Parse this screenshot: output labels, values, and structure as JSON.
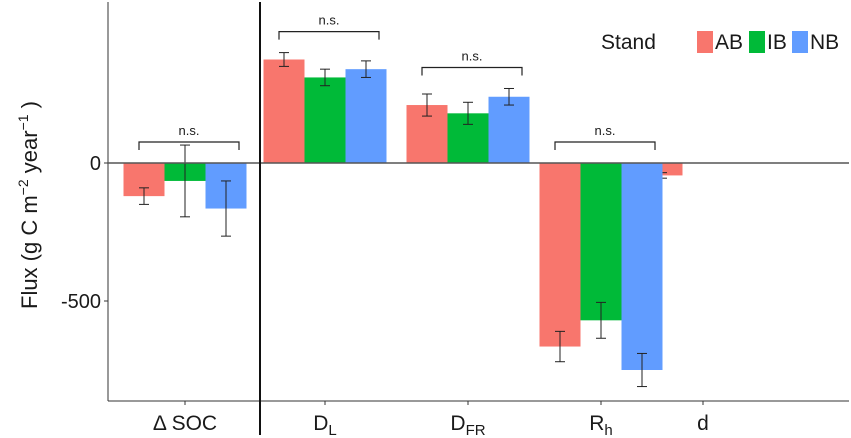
{
  "chart_data": {
    "type": "bar",
    "ylabel": "Flux (g C m−2 year−1 )",
    "ylabel_parts": {
      "prefix": "Flux (g C m",
      "exp1": "−2",
      "mid": " year",
      "exp2": "−1",
      "suffix": " )"
    },
    "ylim": [
      -870,
      470
    ],
    "yticks": [
      0,
      -500
    ],
    "ytick_labels": [
      "0",
      "-500"
    ],
    "grid": false,
    "legend": {
      "title": "Stand",
      "position": "top-right",
      "entries": [
        "AB",
        "IB",
        "NB"
      ]
    },
    "categories": [
      {
        "label": "Δ SOC",
        "base": "Δ SOC",
        "sub": ""
      },
      {
        "label": "DL",
        "base": "D",
        "sub": "L"
      },
      {
        "label": "DFR",
        "base": "D",
        "sub": "FR"
      },
      {
        "label": "Rh",
        "base": "R",
        "sub": "h"
      },
      {
        "label": "d",
        "base": "d",
        "sub": ""
      }
    ],
    "series": [
      {
        "name": "AB",
        "color": "#F8766D",
        "values": [
          -120,
          375,
          210,
          -665,
          -45
        ],
        "errors": [
          30,
          25,
          40,
          55,
          10
        ]
      },
      {
        "name": "IB",
        "color": "#00BA38",
        "values": [
          -65,
          310,
          180,
          -570,
          null
        ],
        "errors": [
          130,
          30,
          40,
          65,
          null
        ]
      },
      {
        "name": "NB",
        "color": "#619CFF",
        "values": [
          -165,
          340,
          240,
          -750,
          null
        ],
        "errors": [
          100,
          30,
          30,
          60,
          null
        ]
      }
    ],
    "annotations": [
      {
        "text": "n.s.",
        "category_index": 0
      },
      {
        "text": "n.s.",
        "category_index": 1
      },
      {
        "text": "n.s.",
        "category_index": 2
      },
      {
        "text": "n.s.",
        "category_index": 3
      }
    ]
  }
}
